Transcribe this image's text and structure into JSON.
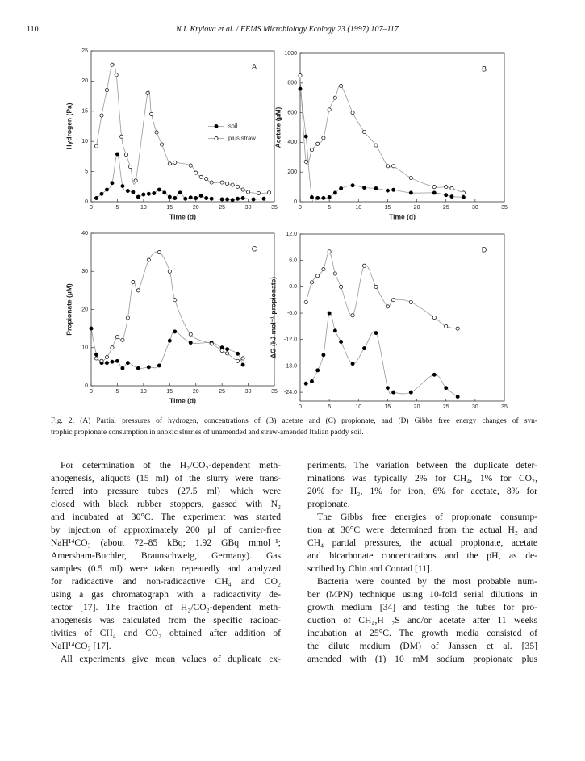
{
  "header": {
    "page_number": "110",
    "running_title": "N.I. Krylova et al. / FEMS Microbiology Ecology 23 (1997) 107–117"
  },
  "chart_data": [
    {
      "type": "line",
      "panel_label": "A",
      "xlabel": "Time (d)",
      "ylabel": "Hydrogen (Pa)",
      "xlim": [
        0,
        35
      ],
      "xticks": [
        0,
        5,
        10,
        15,
        20,
        25,
        30,
        35
      ],
      "ylim": [
        0,
        25
      ],
      "yticks": [
        0,
        5,
        10,
        15,
        20,
        25
      ],
      "legend": "center right",
      "series": [
        {
          "name": "soil",
          "color": "#000000",
          "marker": "filled",
          "x": [
            1,
            2,
            3,
            4,
            5,
            6,
            7,
            8,
            9,
            10,
            11,
            12,
            13,
            14,
            15,
            16,
            17,
            18,
            19,
            20,
            21,
            22,
            23,
            25,
            26,
            27,
            28,
            29,
            31,
            33
          ],
          "values": [
            0.6,
            1.3,
            2,
            3.1,
            7.9,
            2.6,
            1.8,
            1.6,
            0.8,
            1.2,
            1.3,
            1.4,
            2,
            1.5,
            0.8,
            0.6,
            1.5,
            0.5,
            0.7,
            0.6,
            1,
            0.6,
            0.5,
            0.4,
            0.4,
            0.3,
            0.5,
            0.6,
            0.4,
            0.5
          ]
        },
        {
          "name": "plus straw",
          "color": "#000000",
          "marker": "open",
          "x": [
            1,
            2,
            3,
            4,
            4.8,
            5.8,
            6.7,
            7.5,
            8.5,
            10.8,
            11.5,
            12.5,
            13.5,
            15,
            16,
            19,
            20,
            21,
            22,
            23,
            25,
            26,
            27,
            28,
            29,
            30,
            32,
            34
          ],
          "values": [
            9.2,
            14.3,
            18.5,
            22.7,
            21,
            10.8,
            7.8,
            5.8,
            3.5,
            18,
            14.5,
            11.5,
            9.5,
            6.3,
            6.5,
            6,
            4.8,
            4.1,
            3.8,
            3.2,
            3.2,
            3,
            2.8,
            2.5,
            2,
            1.6,
            1.4,
            1.5
          ]
        }
      ]
    },
    {
      "type": "line",
      "panel_label": "B",
      "xlabel": "Time (d)",
      "ylabel": "Acetate (µM)",
      "xlim": [
        0,
        35
      ],
      "xticks": [
        0,
        5,
        10,
        15,
        20,
        25,
        30,
        35
      ],
      "ylim": [
        0,
        1000
      ],
      "yticks": [
        0,
        200,
        400,
        600,
        800,
        1000
      ],
      "series": [
        {
          "color": "#000000",
          "marker": "filled",
          "x": [
            0,
            1,
            2,
            3,
            4,
            5,
            6,
            7,
            9,
            11,
            13,
            15,
            16,
            19,
            23,
            25,
            26,
            28
          ],
          "values": [
            760,
            440,
            30,
            25,
            25,
            30,
            60,
            90,
            110,
            95,
            90,
            75,
            80,
            60,
            60,
            45,
            35,
            30
          ]
        },
        {
          "color": "#000000",
          "marker": "open",
          "x": [
            0,
            1,
            2,
            3,
            4,
            5,
            6,
            7,
            9,
            11,
            13,
            15,
            16,
            19,
            23,
            25,
            26,
            28
          ],
          "values": [
            850,
            270,
            350,
            390,
            430,
            620,
            700,
            780,
            600,
            470,
            380,
            240,
            240,
            160,
            100,
            100,
            90,
            60
          ]
        }
      ]
    },
    {
      "type": "line",
      "panel_label": "C",
      "xlabel": "Time (d)",
      "ylabel": "Propionate (µM)",
      "xlim": [
        0,
        35
      ],
      "xticks": [
        0,
        5,
        10,
        15,
        20,
        25,
        30,
        35
      ],
      "ylim": [
        0,
        40
      ],
      "yticks": [
        0,
        10,
        20,
        30,
        40
      ],
      "series": [
        {
          "color": "#000000",
          "marker": "filled",
          "x": [
            0,
            1,
            2,
            3,
            4,
            5,
            6,
            7,
            9,
            11,
            13,
            15,
            16,
            19,
            23,
            25,
            26,
            28,
            29
          ],
          "values": [
            15,
            8.2,
            6,
            6,
            6.3,
            6.5,
            4.6,
            6,
            4.6,
            4.9,
            5.3,
            11.8,
            14.2,
            11.3,
            11.3,
            10,
            9.6,
            8.4,
            5.5
          ]
        },
        {
          "color": "#000000",
          "marker": "open",
          "x": [
            1,
            2,
            3,
            4,
            5,
            6,
            7,
            8,
            9,
            11,
            13,
            15,
            16,
            19,
            23,
            25,
            26,
            28,
            29
          ],
          "values": [
            7.2,
            6.5,
            7.5,
            10,
            12.8,
            12,
            17.8,
            27.2,
            25,
            33,
            35,
            30,
            22.5,
            13.5,
            11,
            9.2,
            8.5,
            6.5,
            7.2
          ]
        }
      ]
    },
    {
      "type": "line",
      "panel_label": "D",
      "xlabel": "Time (d)",
      "ylabel": "ΔG (kJ mol⁻¹ propionate)",
      "xlim": [
        0,
        35
      ],
      "xticks": [
        0,
        5,
        10,
        15,
        20,
        25,
        30,
        35
      ],
      "ylim": [
        -26,
        12
      ],
      "yticks": [
        {
          "value": 12,
          "label": "12.0"
        },
        {
          "value": 6,
          "label": "6.0"
        },
        {
          "value": 0,
          "label": "0.0"
        },
        {
          "value": -6,
          "label": "-6.0"
        },
        {
          "value": -12,
          "label": "-12.0"
        },
        {
          "value": -18,
          "label": "-18.0"
        },
        {
          "value": -24,
          "label": "-24.0"
        }
      ],
      "series": [
        {
          "color": "#000000",
          "marker": "filled",
          "x": [
            1,
            2,
            3,
            4,
            5,
            6,
            7,
            9,
            11,
            13,
            15,
            16,
            19,
            23,
            25,
            27
          ],
          "values": [
            -22,
            -21.5,
            -19,
            -15.5,
            -6,
            -10,
            -12.5,
            -17.5,
            -14,
            -10.5,
            -23,
            -24,
            -24,
            -20,
            -23,
            -25
          ]
        },
        {
          "color": "#000000",
          "marker": "open",
          "x": [
            1,
            2,
            3,
            4,
            5,
            6,
            7,
            9,
            11,
            13,
            15,
            16,
            19,
            23,
            25,
            27
          ],
          "values": [
            -3.5,
            1,
            2.5,
            4,
            8,
            3,
            0,
            -6.5,
            4.8,
            0,
            -4.5,
            -3,
            -3.5,
            -7,
            -9,
            -9.5
          ]
        }
      ]
    }
  ],
  "caption": [
    "Fig. 2. (A) Partial pressures of hydrogen, concentrations of (B) acetate and (C) propionate, and (D) Gibbs free energy changes of syn-",
    "trophic propionate consumption in anoxic slurries of unamended and straw-amended Italian paddy soil."
  ],
  "columns": [
    [
      [
        "For determination of the H₂/CO₂-dependent meth-",
        "anogenesis, aliquots (15 ml) of the slurry were trans-",
        "ferred into pressure tubes (27.5 ml) which were",
        "closed with black rubber stoppers, gassed with N₂",
        "and incubated at 30°C. The experiment was started",
        "by injection of approximately 200 µl of carrier-free",
        "NaH¹⁴CO₃ (about 72–85 kBq; 1.92 GBq mmol⁻¹;",
        "Amersham-Buchler, Braunschweig, Germany). Gas",
        "samples (0.5 ml) were taken repeatedly and analyzed",
        "for radioactive and non-radioactive CH₄ and CO₂",
        "using a gas chromatograph with a radioactivity de-",
        "tector [17]. The fraction of H₂/CO₂-dependent meth-",
        "anogenesis was calculated from the specific radioac-",
        "tivities of CH₄ and CO₂ obtained after addition of",
        "NaH¹⁴CO₃ [17]."
      ],
      [
        "All experiments give mean values of duplicate ex-"
      ]
    ],
    [
      [
        "periments. The variation between the duplicate deter-",
        "minations was typically 2% for CH₄, 1% for CO₂,",
        "20% for H₂, 1% for iron, 6% for acetate, 8% for",
        "propionate."
      ],
      [
        "The Gibbs free energies of propionate consump-",
        "tion at 30°C were determined from the actual H₂ and",
        "CH₄ partial pressures, the actual propionate, acetate",
        "and bicarbonate concentrations and the pH, as de-",
        "scribed by Chin and Conrad [11]."
      ],
      [
        "Bacteria were counted by the most probable num-",
        "ber (MPN) technique using 10-fold serial dilutions in",
        "growth medium [34] and testing the tubes for pro-",
        "duction of CH₄,H ₂S and/or acetate after 11 weeks",
        "incubation at 25°C. The growth media consisted of",
        "the dilute medium (DM) of Janssen et al. [35]",
        "amended with (1) 10 mM sodium propionate plus"
      ]
    ]
  ]
}
